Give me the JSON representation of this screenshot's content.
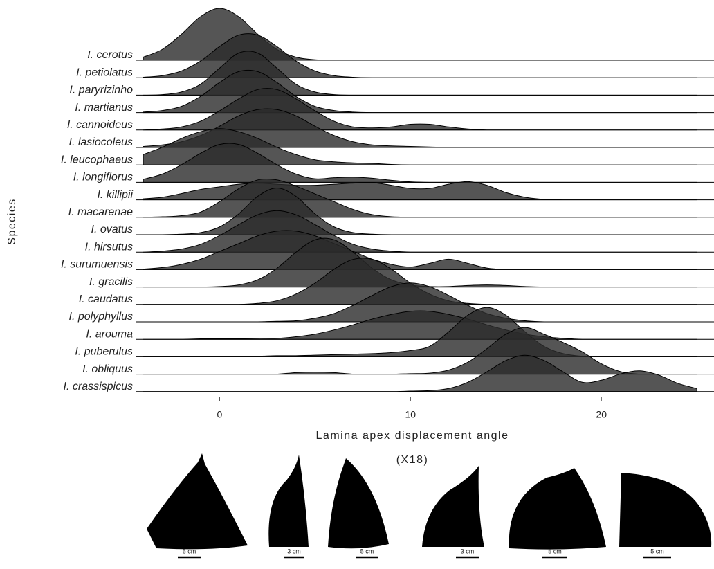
{
  "chart_data": {
    "type": "ridgeline",
    "xlabel": "Lamina apex displacement angle",
    "ylabel": "Species",
    "xlim": [
      -4.4,
      25.9
    ],
    "xticks": [
      0,
      10,
      20
    ],
    "color": "#2b2b2b",
    "fill_opacity": 0.8,
    "x": [
      -4,
      -3,
      -2,
      -1,
      0,
      1,
      2,
      3,
      4,
      5,
      6,
      7,
      8,
      9,
      10,
      11,
      12,
      13,
      14,
      15,
      16,
      17,
      18,
      19,
      20,
      21,
      22,
      23,
      24,
      25
    ],
    "series": [
      {
        "name": "I. cerotus",
        "values": [
          0.06,
          0.21,
          0.5,
          0.84,
          1,
          0.84,
          0.5,
          0.21,
          0.06,
          0.01,
          0,
          0,
          0,
          0,
          0,
          0,
          0,
          0,
          0,
          0,
          0,
          0,
          0,
          0,
          0,
          0,
          0,
          0,
          0,
          0
        ]
      },
      {
        "name": "I. petiolatus",
        "values": [
          0.01,
          0.04,
          0.13,
          0.32,
          0.6,
          0.82,
          0.82,
          0.6,
          0.32,
          0.13,
          0.04,
          0.01,
          0,
          0,
          0,
          0,
          0,
          0,
          0,
          0,
          0,
          0,
          0,
          0,
          0,
          0,
          0,
          0,
          0,
          0
        ]
      },
      {
        "name": "I. paryrizinho",
        "values": [
          0,
          0.01,
          0.06,
          0.21,
          0.52,
          0.81,
          0.81,
          0.52,
          0.21,
          0.06,
          0.01,
          0,
          0,
          0,
          0,
          0,
          0,
          0,
          0,
          0,
          0,
          0,
          0,
          0,
          0,
          0,
          0,
          0,
          0,
          0
        ]
      },
      {
        "name": "I. martianus",
        "values": [
          0.01,
          0.04,
          0.12,
          0.31,
          0.58,
          0.79,
          0.79,
          0.58,
          0.31,
          0.12,
          0.04,
          0.01,
          0,
          0,
          0,
          0,
          0,
          0,
          0,
          0,
          0,
          0,
          0,
          0,
          0,
          0,
          0,
          0,
          0,
          0
        ]
      },
      {
        "name": "I. cannoideus",
        "values": [
          0,
          0.02,
          0.06,
          0.17,
          0.37,
          0.6,
          0.78,
          0.78,
          0.6,
          0.37,
          0.17,
          0.06,
          0.04,
          0.06,
          0.11,
          0.11,
          0.06,
          0.02,
          0,
          0,
          0,
          0,
          0,
          0,
          0,
          0,
          0,
          0,
          0,
          0
        ]
      },
      {
        "name": "I. lasiocoleus",
        "values": [
          0.02,
          0.05,
          0.11,
          0.23,
          0.41,
          0.61,
          0.73,
          0.73,
          0.61,
          0.41,
          0.23,
          0.11,
          0.05,
          0.03,
          0.02,
          0.01,
          0,
          0,
          0,
          0,
          0,
          0,
          0,
          0,
          0,
          0,
          0,
          0,
          0,
          0
        ]
      },
      {
        "name": "I. leucophaeus",
        "values": [
          0.2,
          0.34,
          0.51,
          0.64,
          0.7,
          0.64,
          0.51,
          0.34,
          0.2,
          0.1,
          0.06,
          0.04,
          0.03,
          0.01,
          0,
          0,
          0,
          0,
          0,
          0,
          0,
          0,
          0,
          0,
          0,
          0,
          0,
          0,
          0,
          0
        ]
      },
      {
        "name": "I. longiflorus",
        "values": [
          0.06,
          0.16,
          0.34,
          0.56,
          0.73,
          0.73,
          0.56,
          0.34,
          0.16,
          0.07,
          0.09,
          0.1,
          0.08,
          0.04,
          0.01,
          0,
          0,
          0,
          0,
          0,
          0,
          0,
          0,
          0,
          0,
          0,
          0,
          0,
          0,
          0
        ]
      },
      {
        "name": "I. killipii",
        "values": [
          0.02,
          0.05,
          0.12,
          0.2,
          0.25,
          0.3,
          0.32,
          0.3,
          0.28,
          0.28,
          0.3,
          0.32,
          0.33,
          0.28,
          0.22,
          0.22,
          0.3,
          0.35,
          0.28,
          0.14,
          0.05,
          0.01,
          0,
          0,
          0,
          0,
          0,
          0,
          0,
          0
        ]
      },
      {
        "name": "I. macarenae",
        "values": [
          0,
          0.01,
          0.03,
          0.1,
          0.3,
          0.55,
          0.72,
          0.72,
          0.6,
          0.45,
          0.3,
          0.15,
          0.05,
          0.01,
          0,
          0,
          0,
          0,
          0,
          0,
          0,
          0,
          0,
          0,
          0,
          0,
          0,
          0,
          0,
          0
        ]
      },
      {
        "name": "I. ovatus",
        "values": [
          0,
          0,
          0.01,
          0.04,
          0.15,
          0.4,
          0.74,
          0.9,
          0.74,
          0.4,
          0.15,
          0.04,
          0.01,
          0,
          0,
          0,
          0,
          0,
          0,
          0,
          0,
          0,
          0,
          0,
          0,
          0,
          0,
          0,
          0,
          0
        ]
      },
      {
        "name": "I. hirsutus",
        "values": [
          0,
          0.02,
          0.06,
          0.15,
          0.32,
          0.53,
          0.72,
          0.8,
          0.72,
          0.53,
          0.32,
          0.15,
          0.06,
          0.02,
          0,
          0,
          0,
          0,
          0,
          0,
          0,
          0,
          0,
          0,
          0,
          0,
          0,
          0,
          0,
          0
        ]
      },
      {
        "name": "I. surumuensis",
        "values": [
          0.01,
          0.04,
          0.1,
          0.2,
          0.35,
          0.5,
          0.65,
          0.74,
          0.74,
          0.65,
          0.5,
          0.35,
          0.2,
          0.1,
          0.05,
          0.12,
          0.2,
          0.12,
          0.03,
          0,
          0,
          0,
          0,
          0,
          0,
          0,
          0,
          0,
          0,
          0
        ]
      },
      {
        "name": "I. gracilis",
        "values": [
          0,
          0,
          0,
          0,
          0.01,
          0.04,
          0.14,
          0.36,
          0.67,
          0.91,
          0.91,
          0.67,
          0.36,
          0.14,
          0.04,
          0.01,
          0.01,
          0.03,
          0.04,
          0.03,
          0.01,
          0,
          0,
          0,
          0,
          0,
          0,
          0,
          0,
          0
        ]
      },
      {
        "name": "I. caudatus",
        "values": [
          0,
          0,
          0,
          0,
          0,
          0,
          0.02,
          0.07,
          0.2,
          0.41,
          0.68,
          0.87,
          0.87,
          0.68,
          0.41,
          0.2,
          0.07,
          0.02,
          0,
          0,
          0,
          0,
          0,
          0,
          0,
          0,
          0,
          0,
          0,
          0
        ]
      },
      {
        "name": "I. polyphyllus",
        "values": [
          0,
          0,
          0,
          0,
          0,
          0,
          0,
          0.01,
          0.02,
          0.07,
          0.16,
          0.32,
          0.51,
          0.68,
          0.75,
          0.68,
          0.51,
          0.32,
          0.16,
          0.07,
          0.02,
          0,
          0,
          0,
          0,
          0,
          0,
          0,
          0,
          0
        ]
      },
      {
        "name": "I. arouma",
        "values": [
          0,
          0,
          0,
          0.01,
          0.01,
          0.01,
          0.02,
          0.02,
          0.05,
          0.1,
          0.18,
          0.28,
          0.39,
          0.48,
          0.54,
          0.54,
          0.48,
          0.39,
          0.28,
          0.18,
          0.1,
          0.05,
          0.02,
          0,
          0,
          0,
          0,
          0,
          0,
          0
        ]
      },
      {
        "name": "I. puberulus",
        "values": [
          0,
          0,
          0,
          0,
          0,
          0.01,
          0.01,
          0.02,
          0.02,
          0.03,
          0.04,
          0.05,
          0.06,
          0.08,
          0.12,
          0.2,
          0.48,
          0.8,
          0.95,
          0.8,
          0.48,
          0.2,
          0.06,
          0.01,
          0,
          0,
          0,
          0,
          0,
          0
        ]
      },
      {
        "name": "I. obliquus",
        "values": [
          0,
          0,
          0,
          0,
          0,
          0,
          0,
          0,
          0.03,
          0.04,
          0.03,
          0,
          0,
          0,
          0.01,
          0.02,
          0.08,
          0.23,
          0.49,
          0.77,
          0.9,
          0.77,
          0.61,
          0.43,
          0.2,
          0.05,
          0,
          0,
          0,
          0
        ]
      },
      {
        "name": "I. crassispicus",
        "values": [
          0,
          0,
          0,
          0,
          0,
          0,
          0,
          0,
          0,
          0,
          0,
          0,
          0,
          0,
          0.01,
          0.02,
          0.06,
          0.18,
          0.38,
          0.6,
          0.7,
          0.6,
          0.38,
          0.18,
          0.22,
          0.34,
          0.4,
          0.32,
          0.16,
          0.06
        ]
      }
    ]
  },
  "leaves": {
    "magnification": "(X18)",
    "scale_labels": [
      "5 cm",
      "3 cm",
      "5 cm",
      "3 cm",
      "5 cm",
      "5 cm"
    ]
  }
}
